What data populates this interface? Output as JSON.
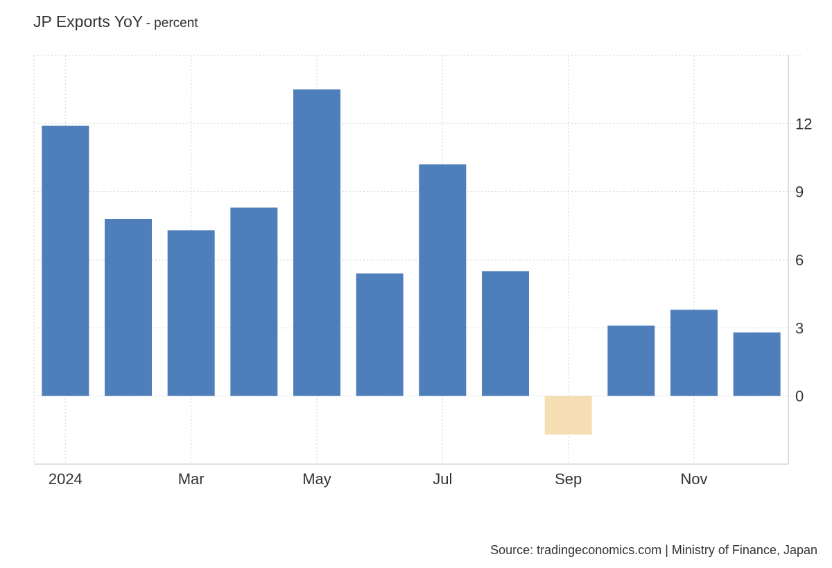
{
  "header": {
    "title": "JP Exports YoY",
    "subtitle": "- percent"
  },
  "footer": {
    "source": "Source: tradingeconomics.com | Ministry of Finance, Japan"
  },
  "colors": {
    "positive": "#4e7fba",
    "negative": "#f5deb3",
    "grid": "#d9d9d9",
    "axis": "#cccccc",
    "text": "#333333"
  },
  "chart_data": {
    "type": "bar",
    "title": "JP Exports YoY",
    "subtitle": "- percent",
    "categories": [
      "Jan 2024",
      "Feb 2024",
      "Mar 2024",
      "Apr 2024",
      "May 2024",
      "Jun 2024",
      "Jul 2024",
      "Aug 2024",
      "Sep 2024",
      "Oct 2024",
      "Nov 2024",
      "Dec 2024"
    ],
    "values": [
      11.9,
      7.8,
      7.3,
      8.3,
      13.5,
      5.4,
      10.2,
      5.5,
      -1.7,
      3.1,
      3.8,
      2.8
    ],
    "x_tick_labels": [
      "2024",
      "Mar",
      "May",
      "Jul",
      "Sep",
      "Nov"
    ],
    "x_tick_categories": [
      "Jan 2024",
      "Mar 2024",
      "May 2024",
      "Jul 2024",
      "Sep 2024",
      "Nov 2024"
    ],
    "y_ticks": [
      0,
      3,
      6,
      9,
      12
    ],
    "ylim": [
      -3,
      15
    ],
    "y_axis_side": "right",
    "grid": true,
    "xlabel": "",
    "ylabel": ""
  }
}
